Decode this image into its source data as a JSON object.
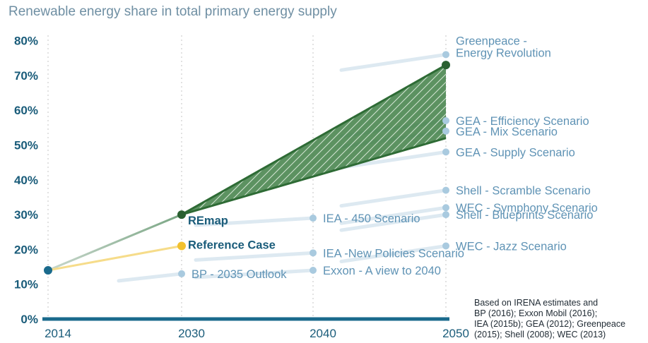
{
  "title": "Renewable energy share in total primary energy supply",
  "source_note": [
    "Based on IRENA estimates and",
    "BP (2016); Exxon Mobil (2016);",
    "IEA (2015b); GEA (2012); Greenpeace",
    "(2015); Shell (2008); WEC (2013)"
  ],
  "colors": {
    "axis_text": "#1a5c7a",
    "scenario_text": "#5f93b5",
    "scenario_point": "#a9cadf",
    "remap": "#2e6b35",
    "reference": "#f2c12e",
    "baseline": "#1a6a8c",
    "grid": "#d6d6d6"
  },
  "chart_data": {
    "type": "line",
    "title": "Renewable energy share in total primary energy supply",
    "x_ticks": [
      "2014",
      "2030",
      "2040",
      "2050"
    ],
    "y_ticks": [
      "0%",
      "10%",
      "20%",
      "30%",
      "40%",
      "50%",
      "60%",
      "70%",
      "80%"
    ],
    "xlim": [
      2014,
      2050
    ],
    "ylim": [
      0,
      80
    ],
    "grid": "vertical dotted at 2030, 2040, 2050",
    "start": {
      "x": 2014,
      "y": 14
    },
    "remap": {
      "label": "REmap",
      "points": [
        {
          "x": 2030,
          "y": 30
        }
      ],
      "range_2050": {
        "low": 52,
        "high": 73
      }
    },
    "reference_case": {
      "label": "Reference Case",
      "points": [
        {
          "x": 2030,
          "y": 21
        }
      ]
    },
    "scenarios": [
      {
        "label": "BP - 2035 Outlook",
        "x": 2030,
        "y": 13
      },
      {
        "label": "IEA - 450 Scenario",
        "x": 2040,
        "y": 29
      },
      {
        "label": "IEA -New Policies Scenario",
        "x": 2040,
        "y": 19
      },
      {
        "label": "Exxon - A view to 2040",
        "x": 2040,
        "y": 14
      },
      {
        "label": "Greenpeace -\nEnergy Revolution",
        "x": 2050,
        "y": 76
      },
      {
        "label": "GEA - Efficiency Scenario",
        "x": 2050,
        "y": 57
      },
      {
        "label": "GEA - Mix Scenario",
        "x": 2050,
        "y": 54
      },
      {
        "label": "GEA - Supply Scenario",
        "x": 2050,
        "y": 48
      },
      {
        "label": "Shell - Scramble Scenario",
        "x": 2050,
        "y": 37
      },
      {
        "label": "WEC - Symphony Scenario",
        "x": 2050,
        "y": 32
      },
      {
        "label": "Shell - Blueprints Scenario",
        "x": 2050,
        "y": 30
      },
      {
        "label": "WEC - Jazz Scenario",
        "x": 2050,
        "y": 21
      }
    ]
  }
}
